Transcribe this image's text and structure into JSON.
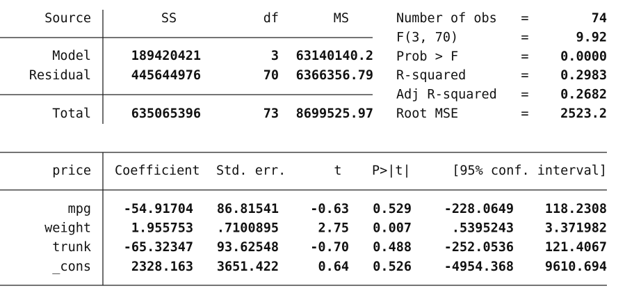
{
  "anova": {
    "header": [
      "Source",
      "SS",
      "df",
      "MS"
    ],
    "rows": [
      [
        "Model",
        "189420421",
        "3",
        "63140140.2"
      ],
      [
        "Residual",
        "445644976",
        "70",
        "6366356.79"
      ],
      [
        "Total",
        "635065396",
        "73",
        "8699525.97"
      ]
    ]
  },
  "stats": [
    {
      "label": "Number of obs",
      "eq": "=",
      "value": "74"
    },
    {
      "label": "F(3, 70)",
      "eq": "=",
      "value": "9.92"
    },
    {
      "label": "Prob > F",
      "eq": "=",
      "value": "0.0000"
    },
    {
      "label": "R-squared",
      "eq": "=",
      "value": "0.2983"
    },
    {
      "label": "Adj R-squared",
      "eq": "=",
      "value": "0.2682"
    },
    {
      "label": "Root MSE",
      "eq": "=",
      "value": "2523.2"
    }
  ],
  "coef": {
    "header": [
      "price",
      "Coefficient",
      "Std. err.",
      "t",
      "P>|t|",
      "[95% conf. interval]"
    ],
    "rows": [
      [
        "mpg",
        "-54.91704",
        "86.81541",
        "-0.63",
        "0.529",
        "-228.0649",
        "118.2308"
      ],
      [
        "weight",
        "1.955753",
        ".7100895",
        "2.75",
        "0.007",
        ".5395243",
        "3.371982"
      ],
      [
        "trunk",
        "-65.32347",
        "93.62548",
        "-0.70",
        "0.488",
        "-252.0536",
        "121.4067"
      ],
      [
        "_cons",
        "2328.163",
        "3651.422",
        "0.64",
        "0.526",
        "-4954.368",
        "9610.694"
      ]
    ]
  }
}
